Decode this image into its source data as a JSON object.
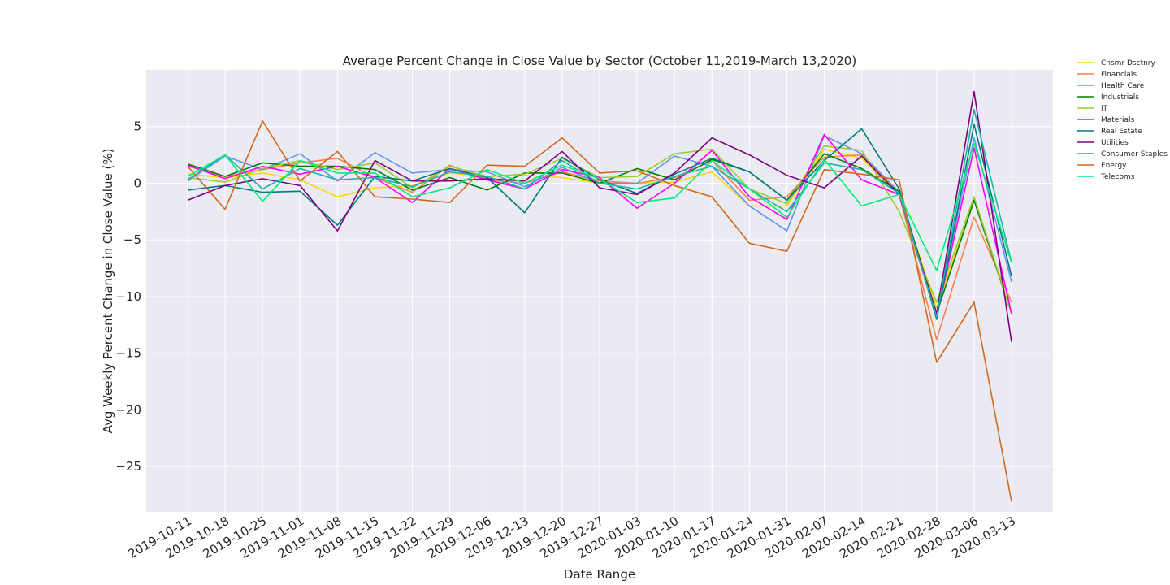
{
  "chart_data": {
    "type": "line",
    "title": "Average Percent Change in Close Value by Sector (October 11,2019-March 13,2020)",
    "xlabel": "Date Range",
    "ylabel": "Avg Weekly Percent Change in Close Value (%)",
    "ylim": [
      -29,
      10
    ],
    "yticks": [
      5,
      0,
      -5,
      -10,
      -15,
      -20,
      -25
    ],
    "ytick_labels": [
      "5",
      "0",
      "−5",
      "−10",
      "−15",
      "−20",
      "−25"
    ],
    "grid": true,
    "legend_position": "top-right, outside plot",
    "x": [
      "2019-10-11",
      "2019-10-18",
      "2019-10-25",
      "2019-11-01",
      "2019-11-08",
      "2019-11-15",
      "2019-11-22",
      "2019-11-29",
      "2019-12-06",
      "2019-12-13",
      "2019-12-20",
      "2019-12-27",
      "2020-01-03",
      "2020-01-10",
      "2020-01-17",
      "2020-01-24",
      "2020-01-31",
      "2020-02-07",
      "2020-02-14",
      "2020-02-21",
      "2020-02-28",
      "2020-03-06",
      "2020-03-13"
    ],
    "series": [
      {
        "name": "Cnsmr Dsctnry",
        "color": "#ffd700",
        "values": [
          0.8,
          0.5,
          0.9,
          0.3,
          -1.2,
          -0.4,
          -0.2,
          0.9,
          0.6,
          0.7,
          0.5,
          0.0,
          0.0,
          0.1,
          1.0,
          -2.0,
          -2.0,
          3.0,
          2.2,
          -1.0,
          -11.0,
          -1.5,
          -11.5
        ]
      },
      {
        "name": "Financials",
        "color": "#ff7f50",
        "values": [
          1.5,
          0.6,
          1.2,
          1.8,
          2.2,
          0.5,
          -0.8,
          1.6,
          0.3,
          0.0,
          1.0,
          0.2,
          0.0,
          0.5,
          2.0,
          -1.5,
          -1.2,
          2.3,
          2.5,
          -1.0,
          -13.8,
          -3.0,
          -10.5
        ]
      },
      {
        "name": "Health Care",
        "color": "#6495ed",
        "values": [
          0.2,
          2.4,
          1.2,
          2.6,
          0.2,
          2.7,
          0.9,
          1.2,
          1.0,
          -0.3,
          1.4,
          0.0,
          0.0,
          2.4,
          1.5,
          -2.0,
          -4.2,
          4.2,
          2.6,
          -0.8,
          -11.5,
          4.0,
          -8.7
        ]
      },
      {
        "name": "Industrials",
        "color": "#008000",
        "values": [
          1.7,
          0.6,
          1.8,
          1.5,
          1.5,
          1.2,
          -0.6,
          0.5,
          -0.6,
          0.9,
          0.9,
          0.0,
          1.3,
          0.3,
          2.1,
          1.0,
          -1.5,
          2.6,
          1.3,
          -0.7,
          -11.5,
          -1.5,
          -11.5
        ]
      },
      {
        "name": "IT",
        "color": "#9acd32",
        "values": [
          0.5,
          0.1,
          1.3,
          2.0,
          1.2,
          1.8,
          -0.4,
          1.5,
          0.6,
          0.8,
          2.2,
          0.5,
          0.6,
          2.6,
          3.0,
          -0.5,
          -1.8,
          3.3,
          2.9,
          -2.5,
          -10.5,
          -1.2,
          -11.5
        ]
      },
      {
        "name": "Materials",
        "color": "#ff00ff",
        "values": [
          1.6,
          0.4,
          1.5,
          0.8,
          1.5,
          0.5,
          -1.7,
          1.3,
          0.3,
          -0.5,
          1.2,
          0.5,
          -2.2,
          0.0,
          2.9,
          -1.2,
          -3.2,
          4.3,
          0.3,
          -1.0,
          -11.8,
          3.1,
          -11.5
        ]
      },
      {
        "name": "Real Estate",
        "color": "#007b7f",
        "values": [
          -0.6,
          -0.2,
          -0.8,
          -0.7,
          -3.7,
          0.6,
          0.2,
          1.3,
          0.5,
          -2.6,
          2.3,
          0.3,
          -0.9,
          0.8,
          2.2,
          1.0,
          -1.5,
          2.0,
          4.8,
          -0.5,
          -12.0,
          5.2,
          -8.2
        ]
      },
      {
        "name": "Utilities",
        "color": "#800080",
        "values": [
          -1.5,
          -0.2,
          0.4,
          -0.2,
          -4.2,
          2.0,
          0.2,
          0.2,
          0.4,
          0.2,
          2.8,
          -0.4,
          -1.0,
          0.9,
          4.0,
          2.5,
          0.7,
          -0.4,
          2.4,
          -1.0,
          -11.5,
          8.1,
          -14.0
        ]
      },
      {
        "name": "Consumer Staples",
        "color": "#20b2aa",
        "values": [
          0.3,
          2.5,
          -0.5,
          1.3,
          0.3,
          0.5,
          -0.3,
          1.0,
          0.6,
          -0.5,
          2.0,
          0.0,
          -0.5,
          0.6,
          1.5,
          -0.5,
          -2.5,
          1.8,
          1.2,
          -0.9,
          -11.8,
          6.5,
          -7.0
        ]
      },
      {
        "name": "Energy",
        "color": "#d2691e",
        "values": [
          1.5,
          -2.3,
          5.5,
          0.2,
          2.8,
          -1.2,
          -1.4,
          -1.7,
          1.6,
          1.5,
          4.0,
          0.9,
          1.1,
          -0.2,
          -1.2,
          -5.3,
          -6.0,
          1.2,
          0.8,
          0.3,
          -15.8,
          -10.5,
          -28.1
        ]
      },
      {
        "name": "Telecoms",
        "color": "#00ee76",
        "values": [
          0.6,
          2.5,
          -1.6,
          2.0,
          0.9,
          0.9,
          -1.2,
          -0.4,
          1.2,
          0.0,
          1.6,
          0.4,
          -1.7,
          -1.3,
          2.0,
          -0.5,
          -3.0,
          2.1,
          -2.0,
          -1.0,
          -7.7,
          3.5,
          -7.0
        ]
      }
    ]
  }
}
